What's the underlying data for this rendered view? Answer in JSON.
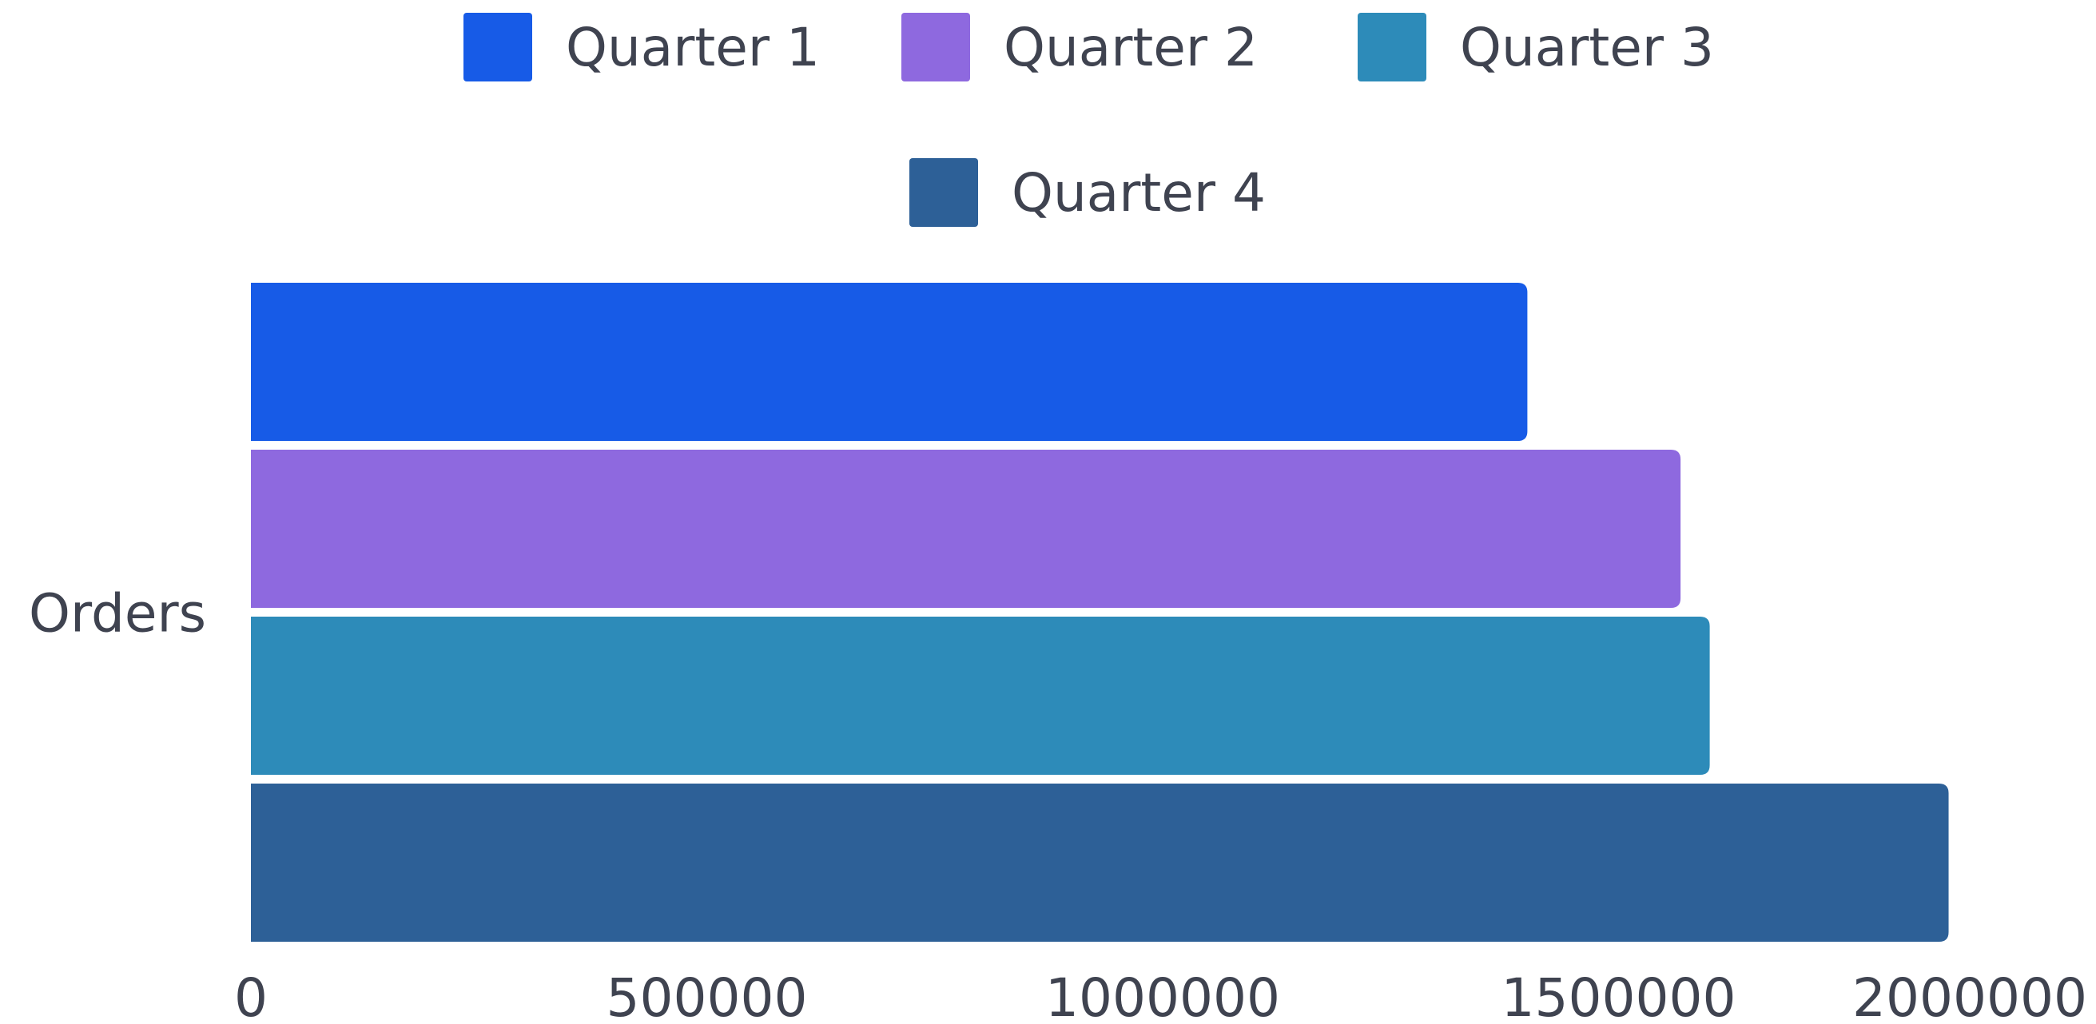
{
  "chart_data": {
    "type": "bar",
    "orientation": "horizontal",
    "categories": [
      "Orders"
    ],
    "series": [
      {
        "name": "Quarter 1",
        "values": [
          1400000
        ],
        "color": "#175be7"
      },
      {
        "name": "Quarter 2",
        "values": [
          1568000
        ],
        "color": "#8e69df"
      },
      {
        "name": "Quarter 3",
        "values": [
          1600000
        ],
        "color": "#2d8bb9"
      },
      {
        "name": "Quarter 4",
        "values": [
          1862000
        ],
        "color": "#2d6097"
      }
    ],
    "xlim": [
      0,
      2000000
    ],
    "xticks": [
      "0",
      "500000",
      "1000000",
      "1500000",
      "2000000"
    ],
    "legend_position": "top",
    "grid": false
  }
}
